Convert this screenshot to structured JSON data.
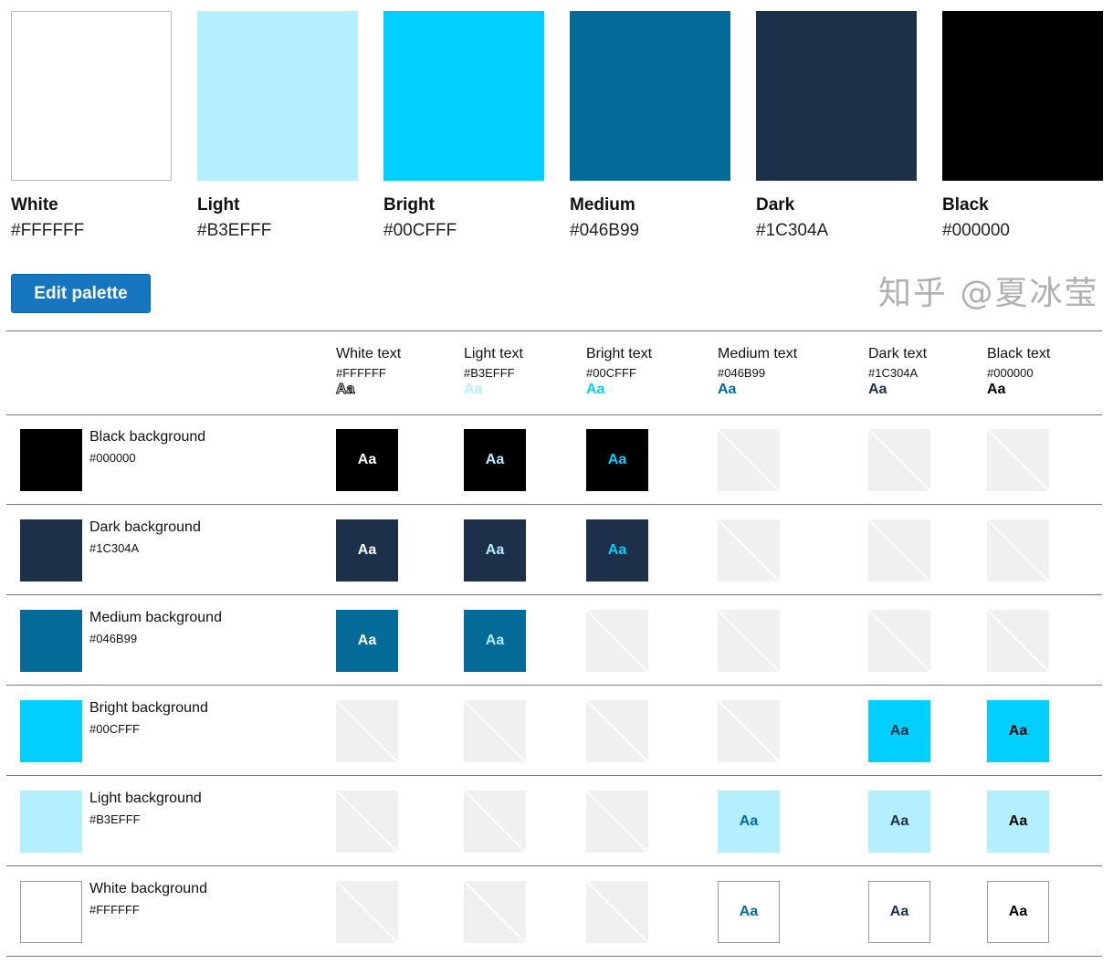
{
  "swatches": [
    {
      "name": "White",
      "hex": "#FFFFFF"
    },
    {
      "name": "Light",
      "hex": "#B3EFFF"
    },
    {
      "name": "Bright",
      "hex": "#00CFFF"
    },
    {
      "name": "Medium",
      "hex": "#046B99"
    },
    {
      "name": "Dark",
      "hex": "#1C304A"
    },
    {
      "name": "Black",
      "hex": "#000000"
    }
  ],
  "edit_button": "Edit palette",
  "sample": "Aa",
  "text_columns": [
    {
      "label": "White text",
      "hex": "#FFFFFF"
    },
    {
      "label": "Light text",
      "hex": "#B3EFFF"
    },
    {
      "label": "Bright text",
      "hex": "#00CFFF"
    },
    {
      "label": "Medium text",
      "hex": "#046B99"
    },
    {
      "label": "Dark text",
      "hex": "#1C304A"
    },
    {
      "label": "Black text",
      "hex": "#000000"
    }
  ],
  "rows": [
    {
      "label": "Black background",
      "hex": "#000000",
      "valid": [
        true,
        true,
        true,
        false,
        false,
        false
      ]
    },
    {
      "label": "Dark background",
      "hex": "#1C304A",
      "valid": [
        true,
        true,
        true,
        false,
        false,
        false
      ]
    },
    {
      "label": "Medium background",
      "hex": "#046B99",
      "valid": [
        true,
        true,
        false,
        false,
        false,
        false
      ]
    },
    {
      "label": "Bright background",
      "hex": "#00CFFF",
      "valid": [
        false,
        false,
        false,
        false,
        true,
        true
      ]
    },
    {
      "label": "Light background",
      "hex": "#B3EFFF",
      "valid": [
        false,
        false,
        false,
        true,
        true,
        true
      ]
    },
    {
      "label": "White background",
      "hex": "#FFFFFF",
      "valid": [
        false,
        false,
        false,
        true,
        true,
        true
      ]
    }
  ],
  "watermark": "知乎 @夏冰莹"
}
